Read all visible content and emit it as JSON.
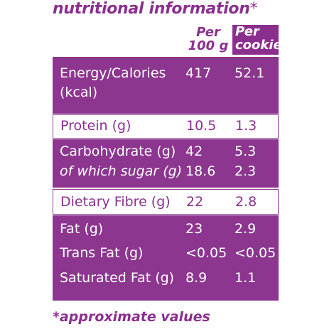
{
  "title": {
    "text": "nutritional information",
    "asterisk": "*"
  },
  "columns": {
    "per100_line1": "Per",
    "per100_line2": "100 g",
    "percookie_line1": "Per",
    "percookie_line2": "cookie"
  },
  "rows": [
    {
      "style": "purple",
      "lines": [
        {
          "label": "Energy/Calories",
          "per100": "417",
          "percookie": "52.1"
        },
        {
          "label": "(kcal)",
          "per100": "",
          "percookie": ""
        }
      ]
    },
    {
      "style": "white",
      "lines": [
        {
          "label": "Protein (g)",
          "per100": "10.5",
          "percookie": "1.3"
        }
      ]
    },
    {
      "style": "purple",
      "lines": [
        {
          "label": "Carbohydrate (g)",
          "per100": "42",
          "percookie": "5.3"
        },
        {
          "label": "of which sugar (g)",
          "per100": "18.6",
          "percookie": "2.3",
          "italic": true
        }
      ]
    },
    {
      "style": "white",
      "lines": [
        {
          "label": "Dietary Fibre (g)",
          "per100": "22",
          "percookie": "2.8"
        }
      ]
    },
    {
      "style": "purple",
      "lines": [
        {
          "label": "Fat (g)",
          "per100": "23",
          "percookie": "2.9"
        },
        {
          "label": "Trans Fat (g)",
          "per100": "<0.05",
          "percookie": "<0.05"
        },
        {
          "label": "Saturated Fat (g)",
          "per100": "8.9",
          "percookie": "1.1"
        }
      ]
    }
  ],
  "footnote": "*approximate values",
  "colors": {
    "brand_purple": "#8c368f",
    "text_purple": "#8b2f8f",
    "background": "#ffffff"
  }
}
